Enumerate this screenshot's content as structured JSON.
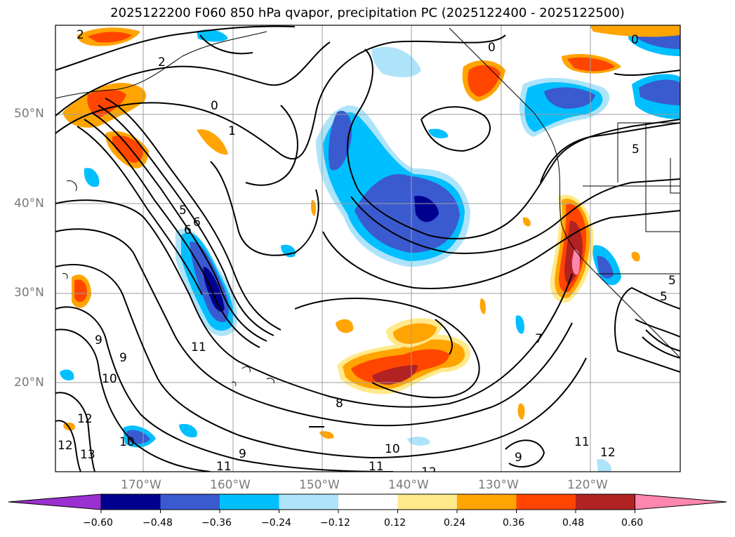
{
  "title": "2025122200 F060 850 hPa qvapor, precipitation PC (2025122400 - 2025122500)",
  "lat_labels": [
    "50°N",
    "40°N",
    "30°N",
    "20°N"
  ],
  "lon_labels": [
    "170°W",
    "160°W",
    "150°W",
    "140°W",
    "130°W",
    "120°W"
  ],
  "colorbar": {
    "ticks": [
      "−0.60",
      "−0.48",
      "−0.36",
      "−0.24",
      "−0.12",
      "0.12",
      "0.24",
      "0.36",
      "0.48",
      "0.60"
    ],
    "colors": [
      "#9b30d0",
      "#000090",
      "#3a5ad0",
      "#00bfff",
      "#aee4fa",
      "#ffffff",
      "#ffe98a",
      "#ffa400",
      "#ff4500",
      "#b22222",
      "#ff87ad"
    ]
  },
  "contour_labels": [
    "2",
    "2",
    "0",
    "0",
    "0",
    "1",
    "5",
    "5",
    "6",
    "6",
    "9",
    "9",
    "10",
    "12",
    "12",
    "13",
    "10",
    "11",
    "11",
    "9",
    "8",
    "10",
    "11",
    "12",
    "7",
    "11",
    "12",
    "9",
    "5",
    "5"
  ]
}
